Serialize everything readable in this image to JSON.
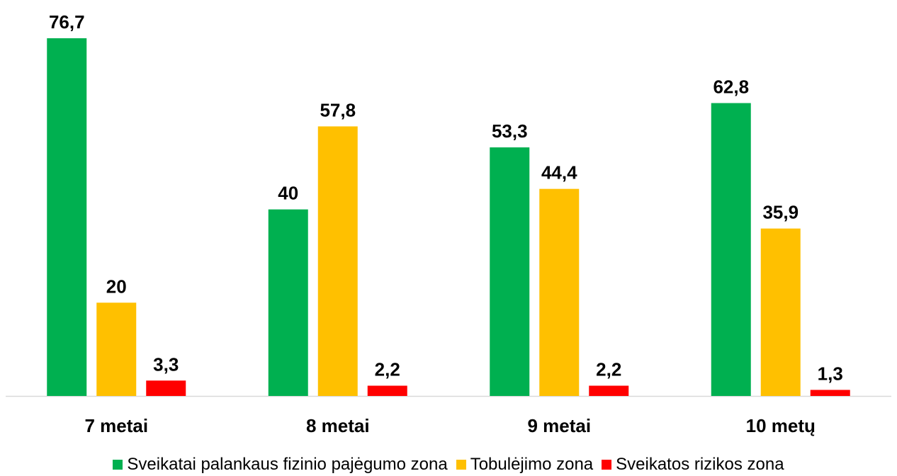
{
  "chart_data": {
    "type": "bar",
    "categories": [
      "7 metai",
      "8 metai",
      "9 metai",
      "10 metų"
    ],
    "series": [
      {
        "name": "Sveikatai palankaus fizinio pajėgumo zona",
        "color": "#00B050",
        "values": [
          76.7,
          40,
          53.3,
          62.8
        ],
        "labels": [
          "76,7",
          "40",
          "53,3",
          "62,8"
        ]
      },
      {
        "name": "Tobulėjimo zona",
        "color": "#FFC000",
        "values": [
          20,
          57.8,
          44.4,
          35.9
        ],
        "labels": [
          "20",
          "57,8",
          "44,4",
          "35,9"
        ]
      },
      {
        "name": "Sveikatos rizikos zona",
        "color": "#FF0000",
        "values": [
          3.3,
          2.2,
          2.2,
          1.3
        ],
        "labels": [
          "3,3",
          "2,2",
          "2,2",
          "1,3"
        ]
      }
    ],
    "ylim": [
      0,
      80
    ],
    "grid": false,
    "legend_position": "bottom",
    "axis_color": "#D9D9D9"
  }
}
